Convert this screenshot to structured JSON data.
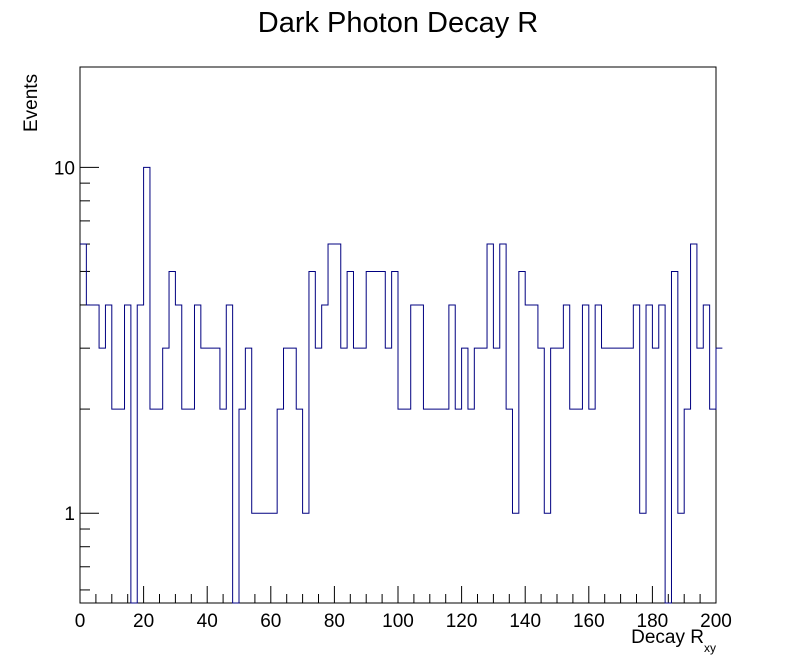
{
  "chart_data": {
    "type": "histogram",
    "title": "Dark Photon Decay R",
    "xlabel": "Decay R",
    "xlabel_subscript": "xy",
    "ylabel": "Events",
    "yscale": "log",
    "xlim": [
      0,
      200
    ],
    "ylim": [
      0.55,
      19.5
    ],
    "x_ticks": [
      "0",
      "20",
      "40",
      "60",
      "80",
      "100",
      "120",
      "140",
      "160",
      "180",
      "200"
    ],
    "y_tick_labels": [
      {
        "value": 1,
        "label": "1"
      },
      {
        "value": 10,
        "label": "10"
      }
    ],
    "bin_width": 2,
    "bin_edges_start": 0,
    "line_color": "#000080",
    "values": [
      6,
      4,
      4,
      3,
      4,
      2,
      2,
      4,
      0,
      4,
      10,
      2,
      2,
      3,
      5,
      4,
      2,
      2,
      4,
      3,
      3,
      3,
      2,
      4,
      0,
      2,
      3,
      1,
      1,
      1,
      1,
      2,
      3,
      3,
      2,
      1,
      5,
      3,
      4,
      6,
      6,
      3,
      5,
      3,
      3,
      5,
      5,
      5,
      3,
      5,
      2,
      2,
      4,
      4,
      2,
      2,
      2,
      2,
      4,
      2,
      3,
      2,
      3,
      3,
      6,
      3,
      6,
      2,
      1,
      5,
      4,
      4,
      3,
      1,
      3,
      3,
      4,
      2,
      2,
      4,
      2,
      4,
      3,
      3,
      3,
      3,
      3,
      4,
      1,
      4,
      3,
      4,
      0,
      5,
      1,
      2,
      6,
      3,
      4,
      2,
      3
    ]
  }
}
